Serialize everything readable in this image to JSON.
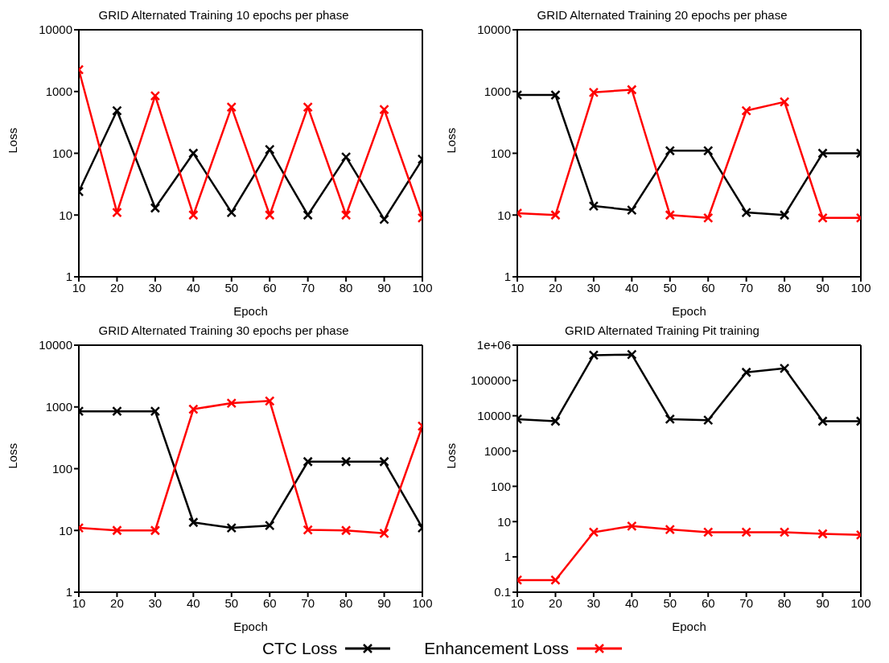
{
  "chart_data": [
    {
      "type": "line",
      "title": "GRID Alternated Training 10 epochs per phase",
      "xlabel": "Epoch",
      "ylabel": "Loss",
      "x": [
        10,
        20,
        30,
        40,
        50,
        60,
        70,
        80,
        90,
        100
      ],
      "xlim": [
        10,
        100
      ],
      "xticks": [
        10,
        20,
        30,
        40,
        50,
        60,
        70,
        80,
        90,
        100
      ],
      "ylim": [
        1,
        10000
      ],
      "yticks": [
        1,
        10,
        100,
        1000,
        10000
      ],
      "log": "y",
      "marker": "cross",
      "line_style": "solid",
      "legend": "bottom",
      "series": [
        {
          "name": "CTC Loss",
          "color": "#000000",
          "values": [
            24,
            490,
            13,
            100,
            11,
            115,
            10,
            87,
            8.5,
            80
          ]
        },
        {
          "name": "Enhancement Loss",
          "color": "#ff0000",
          "values": [
            2250,
            11,
            850,
            10,
            560,
            10,
            560,
            10,
            510,
            9
          ]
        }
      ]
    },
    {
      "type": "line",
      "title": "GRID Alternated Training 20 epochs per phase",
      "xlabel": "Epoch",
      "ylabel": "Loss",
      "x": [
        10,
        20,
        30,
        40,
        50,
        60,
        70,
        80,
        90,
        100
      ],
      "xlim": [
        10,
        100
      ],
      "xticks": [
        10,
        20,
        30,
        40,
        50,
        60,
        70,
        80,
        90,
        100
      ],
      "ylim": [
        1,
        10000
      ],
      "yticks": [
        1,
        10,
        100,
        1000,
        10000
      ],
      "log": "y",
      "marker": "cross",
      "line_style": "solid",
      "series": [
        {
          "color": "#000000",
          "values": [
            880,
            880,
            14,
            12,
            110,
            110,
            11,
            10,
            100,
            100
          ]
        },
        {
          "color": "#ff0000",
          "values": [
            10.7,
            10,
            970,
            1070,
            10,
            9,
            490,
            680,
            9,
            9
          ]
        }
      ]
    },
    {
      "type": "line",
      "title": "GRID Alternated Training 30 epochs per phase",
      "xlabel": "Epoch",
      "ylabel": "Loss",
      "x": [
        10,
        20,
        30,
        40,
        50,
        60,
        70,
        80,
        90,
        100
      ],
      "xlim": [
        10,
        100
      ],
      "xticks": [
        10,
        20,
        30,
        40,
        50,
        60,
        70,
        80,
        90,
        100
      ],
      "ylim": [
        1,
        10000
      ],
      "yticks": [
        1,
        10,
        100,
        1000,
        10000
      ],
      "log": "y",
      "marker": "cross",
      "line_style": "solid",
      "series": [
        {
          "color": "#000000",
          "values": [
            850,
            850,
            850,
            13.5,
            11,
            12,
            130,
            130,
            130,
            11
          ]
        },
        {
          "color": "#ff0000",
          "values": [
            11,
            10,
            10,
            920,
            1150,
            1250,
            10.2,
            10,
            9,
            490
          ]
        }
      ]
    },
    {
      "type": "line",
      "title": "GRID Alternated Training Pit training",
      "xlabel": "Epoch",
      "ylabel": "Loss",
      "x": [
        10,
        20,
        30,
        40,
        50,
        60,
        70,
        80,
        90,
        100
      ],
      "xlim": [
        10,
        100
      ],
      "xticks": [
        10,
        20,
        30,
        40,
        50,
        60,
        70,
        80,
        90,
        100
      ],
      "ylim": [
        0.1,
        1000000
      ],
      "yticks": [
        0.1,
        1,
        10,
        100,
        1000,
        10000,
        100000,
        {
          "value": 1000000,
          "label": "1e+06"
        }
      ],
      "log": "y",
      "marker": "cross",
      "line_style": "solid",
      "series": [
        {
          "color": "#000000",
          "values": [
            8000,
            7000,
            520000,
            540000,
            8000,
            7500,
            170000,
            220000,
            7000,
            7000
          ]
        },
        {
          "color": "#ff0000",
          "values": [
            0.22,
            0.22,
            5,
            7.5,
            6,
            5,
            5,
            5,
            4.5,
            4.2
          ]
        }
      ]
    }
  ]
}
